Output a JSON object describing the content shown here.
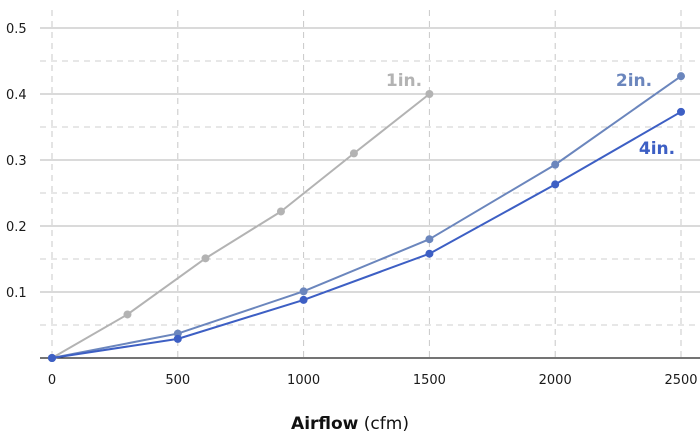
{
  "chart_data": {
    "type": "line",
    "xlabel": {
      "bold": "Airflow",
      "rest": " (cfm)"
    },
    "ylabel": "",
    "xlim": [
      0,
      2500
    ],
    "ylim": [
      0,
      0.5
    ],
    "x_ticks": [
      "0",
      "500",
      "1000",
      "1500",
      "2000",
      "2500"
    ],
    "y_ticks": [
      "0.1",
      "0.2",
      "0.3",
      "0.4",
      "0.5"
    ],
    "grid": {
      "horizontal": "solid at labeled ticks, dashed half-steps",
      "vertical": "dashed"
    },
    "series": [
      {
        "name": "1in.",
        "color": "#b3b3b3",
        "points": [
          [
            0,
            0.0
          ],
          [
            300,
            0.066
          ],
          [
            610,
            0.151
          ],
          [
            910,
            0.222
          ],
          [
            1200,
            0.31
          ],
          [
            1500,
            0.4
          ]
        ]
      },
      {
        "name": "2in.",
        "color": "#6b86bd",
        "points": [
          [
            0,
            0.0
          ],
          [
            500,
            0.037
          ],
          [
            1000,
            0.101
          ],
          [
            1500,
            0.18
          ],
          [
            2000,
            0.293
          ],
          [
            2500,
            0.427
          ]
        ]
      },
      {
        "name": "4in.",
        "color": "#3d5fc4",
        "points": [
          [
            0,
            0.0
          ],
          [
            500,
            0.029
          ],
          [
            1000,
            0.088
          ],
          [
            1500,
            0.158
          ],
          [
            2000,
            0.263
          ],
          [
            2500,
            0.373
          ]
        ]
      }
    ]
  }
}
